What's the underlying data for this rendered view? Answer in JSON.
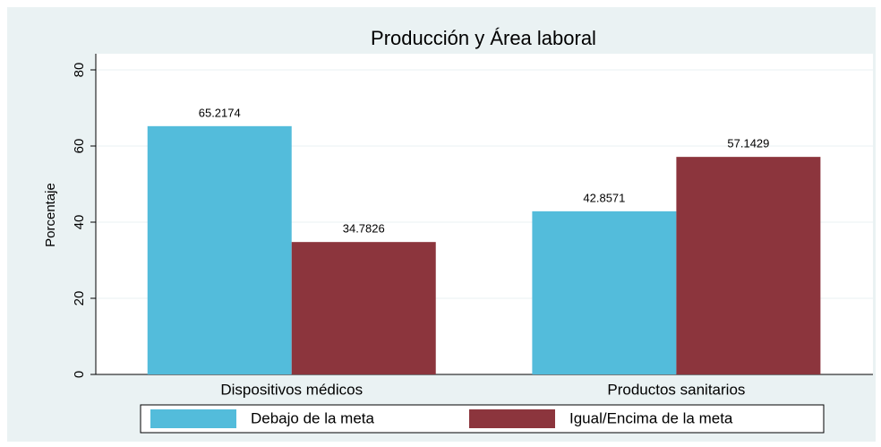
{
  "chart_data": {
    "type": "bar",
    "title": "Producción y Área laboral",
    "categories": [
      "Dispositivos médicos",
      "Productos sanitarios"
    ],
    "y_label": "Porcentaje",
    "series": [
      {
        "name": "Debajo de la meta",
        "color": "#53bcdb",
        "values": [
          65.2174,
          42.8571
        ]
      },
      {
        "name": "Igual/Encima de la meta",
        "color": "#8c353d",
        "values": [
          34.7826,
          57.1429
        ]
      }
    ],
    "ylim": [
      0,
      80
    ],
    "yticks": [
      0,
      20,
      40,
      60,
      80
    ],
    "grid": true
  }
}
